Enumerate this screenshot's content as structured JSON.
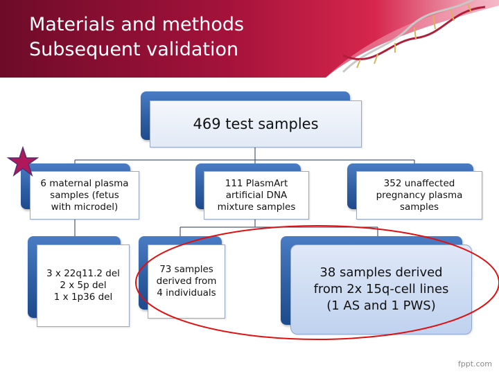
{
  "slide": {
    "title_line1": "Materials and methods",
    "title_line2": "Subsequent validation",
    "watermark": "fppt.com"
  },
  "diagram": {
    "root": "469 test samples",
    "level1": [
      "6 maternal plasma\nsamples (fetus\nwith microdel)",
      "111 PlasmArt\nartificial DNA\nmixture samples",
      "352 unaffected\npregnancy plasma\nsamples"
    ],
    "level2_left": "3 x 22q11.2 del\n2 x 5p del\n1 x 1p36 del",
    "level2_mid_a": "73 samples\nderived from\n4 individuals",
    "level2_mid_b": "38 samples derived\nfrom 2x 15q-cell lines\n(1 AS and 1 PWS)"
  },
  "colors": {
    "header_dark": "#7a0f2f",
    "header_red": "#c4183f",
    "tab_blue": "#2f5fa3",
    "highlight_ellipse": "#e01010",
    "star": "#b0185a"
  }
}
